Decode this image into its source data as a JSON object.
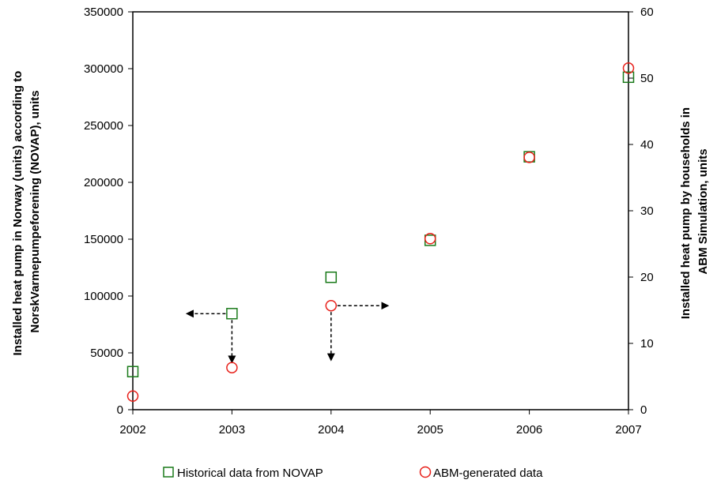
{
  "chart_data": {
    "type": "scatter",
    "x": [
      2002,
      2003,
      2004,
      2005,
      2006,
      2007
    ],
    "xlim": [
      2002,
      2007
    ],
    "ylim_left": [
      0,
      350000
    ],
    "ylim_right": [
      0,
      60
    ],
    "x_ticks": [
      "2002",
      "2003",
      "2004",
      "2005",
      "2006",
      "2007"
    ],
    "y_left_ticks": [
      "0",
      "50000",
      "100000",
      "150000",
      "200000",
      "250000",
      "300000",
      "350000"
    ],
    "y_right_ticks": [
      "0",
      "10",
      "20",
      "30",
      "40",
      "50",
      "60"
    ],
    "ylabel_left": [
      "Installed heat pump in Norway (units) according to",
      "NorskVarmepumpeforening (NOVAP), units"
    ],
    "ylabel_right": [
      "Installed heat pump by households in",
      "ABM Simulation, units"
    ],
    "series": [
      {
        "name": "Historical data from NOVAP",
        "axis": "left",
        "marker": "square",
        "color": "#1a7a1a",
        "values": [
          33500,
          84500,
          116500,
          149000,
          222500,
          292500
        ]
      },
      {
        "name": "ABM-generated data",
        "axis": "left",
        "marker": "circle",
        "color": "#e8201a",
        "values": [
          12000,
          37000,
          91500,
          150500,
          222000,
          300500
        ]
      }
    ],
    "annotations": [
      {
        "type": "dashed-arrow",
        "from": [
          2003,
          84500
        ],
        "to": [
          2002.55,
          84500
        ]
      },
      {
        "type": "dashed-arrow",
        "from": [
          2003,
          84500
        ],
        "to": [
          2003,
          42000
        ]
      },
      {
        "type": "dashed-arrow",
        "from": [
          2004,
          91500
        ],
        "to": [
          2004.57,
          91500
        ]
      },
      {
        "type": "dashed-arrow",
        "from": [
          2004,
          91500
        ],
        "to": [
          2004,
          44000
        ]
      }
    ],
    "legend_position": "bottom",
    "grid": false
  }
}
